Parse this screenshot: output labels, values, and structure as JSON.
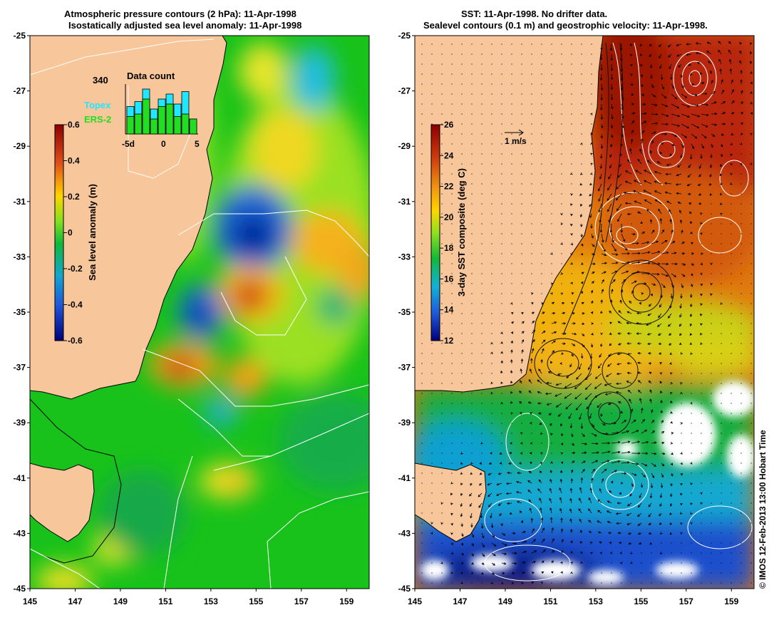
{
  "left_panel": {
    "title_line1": "Atmospheric pressure contours (2 hPa): 11-Apr-1998",
    "title_line2": "Isostatically adjusted sea level anomaly: 11-Apr-1998",
    "colorbar_label": "Sea level anomaly (m)",
    "colorbar_ticks": [
      "0.6",
      "0.4",
      "0.2",
      "0",
      "-0.2",
      "-0.4",
      "-0.6"
    ],
    "inset": {
      "title": "Data count",
      "max_label": "340",
      "x_ticks": [
        "-5d",
        "0",
        "5"
      ],
      "legend": [
        {
          "label": "Topex",
          "color": "#22e5ff"
        },
        {
          "label": "ERS-2",
          "color": "#22dd22"
        }
      ]
    }
  },
  "right_panel": {
    "title_line1": "SST: 11-Apr-1998. No drifter data.",
    "title_line2": "Sealevel contours (0.1 m) and geostrophic velocity: 11-Apr-1998.",
    "colorbar_label": "3-day SST composite (deg C)",
    "colorbar_ticks": [
      "26",
      "24",
      "22",
      "20",
      "18",
      "16",
      "14",
      "12"
    ],
    "scale_label": "1 m/s"
  },
  "axes": {
    "lat_labels": [
      "-25",
      "-27",
      "-29",
      "-31",
      "-33",
      "-35",
      "-37",
      "-39",
      "-41",
      "-43",
      "-45"
    ],
    "lon_labels": [
      "145",
      "147",
      "149",
      "151",
      "153",
      "155",
      "157",
      "159"
    ]
  },
  "credit": "© IMOS 12-Feb-2013 13:00 Hobart Time",
  "colors": {
    "land": "#f7c69a",
    "white": "#ffffff"
  }
}
